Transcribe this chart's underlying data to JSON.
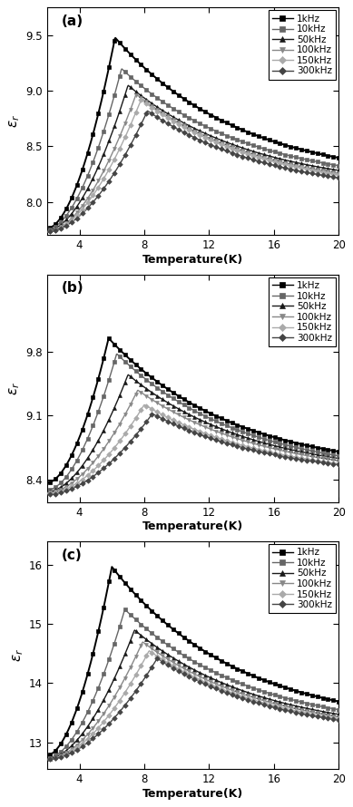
{
  "panels": [
    {
      "label": "(a)",
      "ylabel": "εr",
      "xlabel": "Temperature(K)",
      "ylim": [
        7.7,
        9.75
      ],
      "yticks": [
        8.0,
        8.5,
        9.0,
        9.5
      ],
      "xlim": [
        2,
        20
      ],
      "xticks": [
        4,
        8,
        12,
        16,
        20
      ],
      "peak_temps": [
        6.2,
        6.6,
        7.0,
        7.5,
        7.8,
        8.2
      ],
      "peak_vals": [
        9.48,
        9.2,
        9.05,
        8.97,
        8.92,
        8.82
      ],
      "base_vals": [
        7.76,
        7.75,
        7.74,
        7.73,
        7.73,
        7.73
      ],
      "tail_vals": [
        8.18,
        8.14,
        8.11,
        8.08,
        8.07,
        8.05
      ],
      "decay_rate": [
        0.13,
        0.13,
        0.13,
        0.13,
        0.13,
        0.13
      ]
    },
    {
      "label": "(b)",
      "ylabel": "εr",
      "xlabel": "Temperature(K)",
      "ylim": [
        8.15,
        10.65
      ],
      "yticks": [
        8.4,
        9.1,
        9.8
      ],
      "xlim": [
        2,
        20
      ],
      "xticks": [
        4,
        8,
        12,
        16,
        20
      ],
      "peak_temps": [
        5.8,
        6.3,
        7.0,
        7.6,
        8.0,
        8.5
      ],
      "peak_vals": [
        9.95,
        9.78,
        9.55,
        9.38,
        9.22,
        9.12
      ],
      "base_vals": [
        8.36,
        8.28,
        8.26,
        8.25,
        8.24,
        8.23
      ],
      "tail_vals": [
        8.47,
        8.43,
        8.42,
        8.41,
        8.4,
        8.4
      ],
      "step_vals": [
        8.47,
        8.43,
        8.42,
        8.41,
        8.4,
        8.4
      ],
      "decay_rate": [
        0.13,
        0.13,
        0.13,
        0.13,
        0.13,
        0.13
      ]
    },
    {
      "label": "(c)",
      "ylabel": "εr",
      "xlabel": "Temperature(K)",
      "ylim": [
        12.55,
        16.4
      ],
      "yticks": [
        13,
        14,
        15,
        16
      ],
      "xlim": [
        2,
        20
      ],
      "xticks": [
        4,
        8,
        12,
        16,
        20
      ],
      "peak_temps": [
        6.0,
        6.8,
        7.4,
        7.9,
        8.3,
        8.8
      ],
      "peak_vals": [
        15.97,
        15.25,
        14.9,
        14.7,
        14.55,
        14.42
      ],
      "base_vals": [
        12.78,
        12.73,
        12.72,
        12.71,
        12.71,
        12.71
      ],
      "tail_vals": [
        13.25,
        13.18,
        13.13,
        13.1,
        13.08,
        13.06
      ],
      "decay_rate": [
        0.13,
        0.13,
        0.13,
        0.13,
        0.13,
        0.13
      ]
    }
  ],
  "frequencies": [
    "1kHz",
    "10kHz",
    "50kHz",
    "100kHz",
    "150kHz",
    "300kHz"
  ],
  "colors": [
    "#000000",
    "#666666",
    "#1a1a1a",
    "#888888",
    "#aaaaaa",
    "#444444"
  ],
  "markers": [
    "s",
    "s",
    "^",
    "v",
    "D",
    "D"
  ]
}
